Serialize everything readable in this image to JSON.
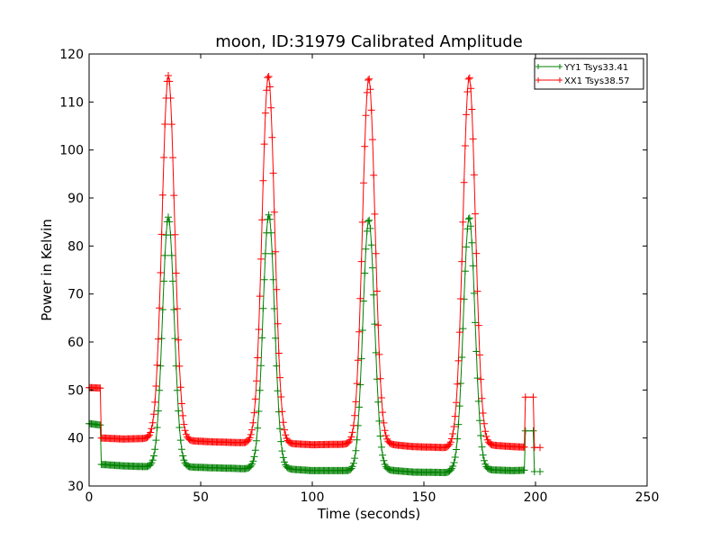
{
  "chart_data": {
    "type": "line",
    "title": "moon, ID:31979 Calibrated Amplitude",
    "xlabel": "Time (seconds)",
    "ylabel": "Power in Kelvin",
    "xlim": [
      0,
      250
    ],
    "ylim": [
      30,
      120
    ],
    "xticks": [
      0,
      50,
      100,
      150,
      200,
      250
    ],
    "yticks": [
      30,
      40,
      50,
      60,
      70,
      80,
      90,
      100,
      110,
      120
    ],
    "grid": false,
    "legend": "top-right",
    "marker": "+",
    "series": [
      {
        "name": "YY1 Tsys33.41",
        "color": "#008000",
        "baseline": [
          [
            0,
            43.0
          ],
          [
            5,
            42.7
          ],
          [
            5.5,
            34.5
          ],
          [
            15,
            34.2
          ],
          [
            27,
            34.0
          ],
          [
            42,
            34.0
          ],
          [
            55,
            33.8
          ],
          [
            70,
            33.6
          ],
          [
            74,
            33.8
          ],
          [
            87,
            33.6
          ],
          [
            100,
            33.2
          ],
          [
            115,
            33.2
          ],
          [
            119,
            33.0
          ],
          [
            132,
            33.4
          ],
          [
            145,
            32.9
          ],
          [
            160,
            32.8
          ],
          [
            164,
            33.2
          ],
          [
            177,
            33.4
          ],
          [
            190,
            33.2
          ],
          [
            195,
            33.3
          ]
        ],
        "peaks": [
          {
            "center": 35.5,
            "height": 86.0,
            "width": 2.6
          },
          {
            "center": 80.5,
            "height": 86.5,
            "width": 2.6
          },
          {
            "center": 125.3,
            "height": 85.5,
            "width": 2.6
          },
          {
            "center": 170.3,
            "height": 86.0,
            "width": 2.6
          }
        ],
        "tail": [
          [
            195.5,
            41.5
          ],
          [
            199,
            41.5
          ],
          [
            199.5,
            33.0
          ],
          [
            202,
            33.0
          ]
        ]
      },
      {
        "name": "XX1 Tsys38.57",
        "color": "#ff0000",
        "baseline": [
          [
            0,
            50.5
          ],
          [
            5,
            50.4
          ],
          [
            5.5,
            40.0
          ],
          [
            15,
            39.8
          ],
          [
            27,
            39.9
          ],
          [
            42,
            39.5
          ],
          [
            55,
            39.2
          ],
          [
            70,
            39.0
          ],
          [
            74,
            39.2
          ],
          [
            87,
            38.9
          ],
          [
            100,
            38.6
          ],
          [
            115,
            38.7
          ],
          [
            119,
            38.6
          ],
          [
            132,
            38.8
          ],
          [
            145,
            38.2
          ],
          [
            160,
            38.0
          ],
          [
            164,
            38.4
          ],
          [
            177,
            38.6
          ],
          [
            190,
            38.2
          ],
          [
            195,
            38.1
          ]
        ],
        "peaks": [
          {
            "center": 35.5,
            "height": 115.5,
            "width": 2.8
          },
          {
            "center": 80.3,
            "height": 115.5,
            "width": 2.8
          },
          {
            "center": 125.3,
            "height": 115.0,
            "width": 2.8
          },
          {
            "center": 170.3,
            "height": 115.2,
            "width": 2.8
          }
        ],
        "tail": [
          [
            195.5,
            48.5
          ],
          [
            199,
            48.5
          ],
          [
            199.5,
            38.0
          ],
          [
            202,
            38.0
          ]
        ]
      }
    ]
  }
}
